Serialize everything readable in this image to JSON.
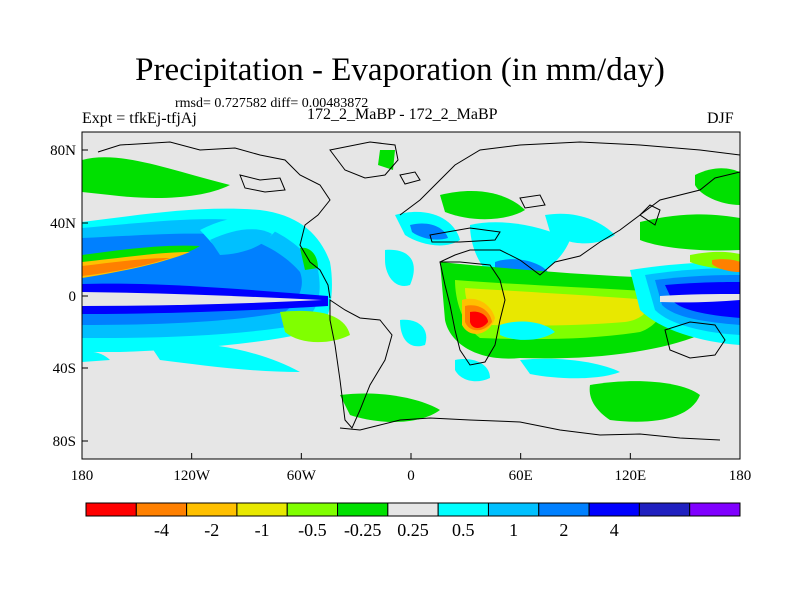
{
  "header": {
    "title": "Precipitation - Evaporation (in mm/day)",
    "stats": "rmsd= 0.727582 diff= 0.00483872",
    "left_label": "Expt = tfkEj-tfjAj",
    "center_label": "172_2_MaBP - 172_2_MaBP",
    "right_label": "DJF"
  },
  "map": {
    "background_color": "#e6e6e6",
    "coastline_color": "#000000",
    "x_ticks": [
      "180",
      "120W",
      "60W",
      "0",
      "60E",
      "120E",
      "180"
    ],
    "y_ticks": [
      "80N",
      "40N",
      "0",
      "40S",
      "80S"
    ]
  },
  "colorbar": {
    "colors": [
      "#ff0000",
      "#ff8000",
      "#ffc000",
      "#e8e800",
      "#80ff00",
      "#00e000",
      "#e6e6e6",
      "#00ffff",
      "#00c0ff",
      "#0080ff",
      "#0000ff",
      "#2020c0",
      "#8000ff"
    ],
    "labels": [
      "-4",
      "-2",
      "-1",
      "-0.5",
      "-0.25",
      "0.25",
      "0.5",
      "1",
      "2",
      "4"
    ]
  }
}
